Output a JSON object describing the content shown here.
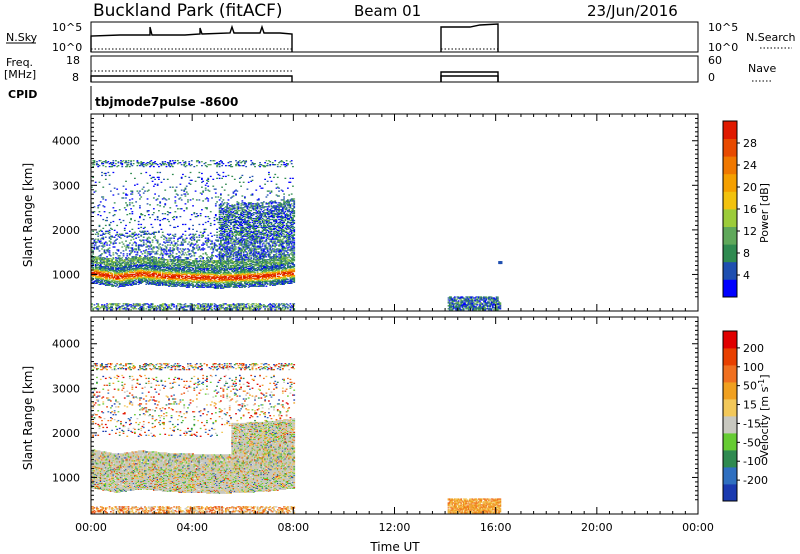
{
  "header": {
    "station": "Buckland Park (fitACF)",
    "beam": "Beam 01",
    "date": "23/Jun/2016"
  },
  "status_panels": {
    "nsky": {
      "label": "N.Sky",
      "ticks": [
        "10^5",
        "10^0"
      ],
      "right_label": "N.Search",
      "right_ticks": [
        "10^5",
        "10^0"
      ]
    },
    "freq": {
      "label_line1": "Freq.",
      "label_line2": "[MHz]",
      "ticks": [
        "18",
        "8"
      ],
      "right_label": "Nave",
      "right_ticks": [
        "60",
        "0"
      ]
    },
    "cpid": {
      "label": "CPID",
      "text": "tbjmode7pulse  -8600"
    }
  },
  "chart_data": [
    {
      "type": "heatmap",
      "name": "power",
      "ylabel": "Slant Range [km]",
      "ylim": [
        180,
        4600
      ],
      "yticks": [
        "1000",
        "2000",
        "3000",
        "4000"
      ],
      "xlim": [
        0,
        24
      ],
      "colorbar": {
        "label": "Power [dB]",
        "ticks": [
          "4",
          "8",
          "12",
          "16",
          "20",
          "24",
          "28"
        ],
        "colors": [
          "#0000ff",
          "#1f4fb0",
          "#2f8a50",
          "#5fa85a",
          "#9ccc3a",
          "#f2c20e",
          "#f5a000",
          "#f07800",
          "#e84a00",
          "#e01a00"
        ]
      },
      "data_windows_hours": [
        [
          0,
          8
        ],
        [
          14.1,
          16.2
        ]
      ],
      "bands": [
        {
          "desc": "main",
          "t": [
            0,
            1,
            2,
            3,
            4,
            5,
            6,
            7,
            8
          ],
          "range_km": [
            950,
            850,
            950,
            900,
            880,
            860,
            880,
            900,
            950
          ]
        }
      ]
    },
    {
      "type": "heatmap",
      "name": "velocity",
      "ylabel": "Slant Range [km]",
      "ylim": [
        180,
        4600
      ],
      "yticks": [
        "1000",
        "2000",
        "3000",
        "4000"
      ],
      "xlim": [
        0,
        24
      ],
      "xticks": [
        "00:00",
        "04:00",
        "08:00",
        "12:00",
        "16:00",
        "20:00",
        "00:00"
      ],
      "xlabel": "Time UT",
      "colorbar": {
        "label_main": "Velocity [m s",
        "label_sup": "-1",
        "label_end": "]",
        "ticks": [
          "200",
          "100",
          "50",
          "15",
          "-15",
          "-50",
          "-100",
          "-200"
        ],
        "colors": [
          "#1a3ab0",
          "#2f6fc0",
          "#2f8a50",
          "#66cc33",
          "#c8c8c0",
          "#f2c85a",
          "#f0a020",
          "#f07020",
          "#e84000",
          "#e00000"
        ]
      }
    }
  ]
}
